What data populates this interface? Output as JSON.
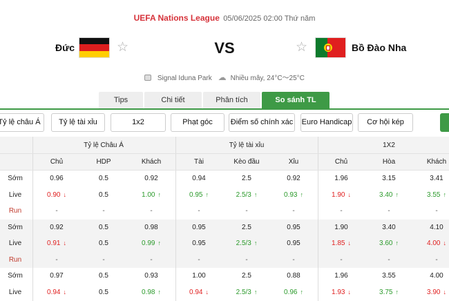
{
  "header": {
    "league": "UEFA Nations League",
    "datetime": "05/06/2025 02:00 Thứ năm",
    "home_team": "Đức",
    "away_team": "Bồ Đào Nha",
    "vs": "VS",
    "venue": "Signal Iduna Park",
    "weather": "Nhiều mây, 24°C～25°C",
    "icons": {
      "favorite": "star-outline-icon",
      "venue": "stadium-icon",
      "weather": "cloudy-icon"
    }
  },
  "tabs": [
    {
      "label": "Tips",
      "active": false
    },
    {
      "label": "Chi tiết",
      "active": false
    },
    {
      "label": "Phân tích",
      "active": false
    },
    {
      "label": "So sánh TL",
      "active": true
    }
  ],
  "filters": [
    "Tỷ lệ châu Á",
    "Tỷ lệ tài xỉu",
    "1x2",
    "Phạt góc",
    "Điểm số chính xác",
    "Euro Handicap",
    "Cơ hội kép"
  ],
  "colors": {
    "accent": "#3e9a46",
    "league": "#d6323a",
    "down": "#e01f1f",
    "up": "#2b9a2b"
  },
  "table": {
    "groups": [
      "Tỷ lệ Châu Á",
      "Tỷ lệ tài xỉu",
      "1X2"
    ],
    "columns": [
      "Chủ",
      "HDP",
      "Khách",
      "Tài",
      "Kèo đầu",
      "Xỉu",
      "Chủ",
      "Hòa",
      "Khách"
    ],
    "rows": [
      {
        "label": "Sớm",
        "cells": [
          "0.96",
          "0.5",
          "0.92",
          "0.94",
          "2.5",
          "0.92",
          "1.96",
          "3.15",
          "3.41"
        ],
        "dirs": [
          "",
          "",
          "",
          "",
          "",
          "",
          "",
          "",
          ""
        ]
      },
      {
        "label": "Live",
        "cells": [
          "0.90",
          "0.5",
          "1.00",
          "0.95",
          "2.5/3",
          "0.93",
          "1.90",
          "3.40",
          "3.55"
        ],
        "dirs": [
          "down",
          "",
          "up",
          "up",
          "up",
          "up",
          "down",
          "up",
          "up"
        ]
      },
      {
        "label": "Run",
        "cells": [
          "-",
          "-",
          "-",
          "-",
          "-",
          "-",
          "-",
          "-",
          "-"
        ],
        "dirs": [
          "",
          "",
          "",
          "",
          "",
          "",
          "",
          "",
          ""
        ]
      },
      {
        "label": "Sớm",
        "cells": [
          "0.92",
          "0.5",
          "0.98",
          "0.95",
          "2.5",
          "0.95",
          "1.90",
          "3.40",
          "4.10"
        ],
        "dirs": [
          "",
          "",
          "",
          "",
          "",
          "",
          "",
          "",
          ""
        ]
      },
      {
        "label": "Live",
        "cells": [
          "0.91",
          "0.5",
          "0.99",
          "0.95",
          "2.5/3",
          "0.95",
          "1.85",
          "3.60",
          "4.00"
        ],
        "dirs": [
          "down",
          "",
          "up",
          "",
          "up",
          "",
          "down",
          "up",
          "down"
        ]
      },
      {
        "label": "Run",
        "cells": [
          "-",
          "-",
          "-",
          "-",
          "-",
          "-",
          "-",
          "-",
          "-"
        ],
        "dirs": [
          "",
          "",
          "",
          "",
          "",
          "",
          "",
          "",
          ""
        ]
      },
      {
        "label": "Sớm",
        "cells": [
          "0.97",
          "0.5",
          "0.93",
          "1.00",
          "2.5",
          "0.88",
          "1.96",
          "3.55",
          "4.00"
        ],
        "dirs": [
          "",
          "",
          "",
          "",
          "",
          "",
          "",
          "",
          ""
        ]
      },
      {
        "label": "Live",
        "cells": [
          "0.94",
          "0.5",
          "0.98",
          "0.94",
          "2.5/3",
          "0.96",
          "1.93",
          "3.75",
          "3.90"
        ],
        "dirs": [
          "down",
          "",
          "up",
          "down",
          "up",
          "up",
          "down",
          "up",
          "down"
        ]
      }
    ]
  }
}
